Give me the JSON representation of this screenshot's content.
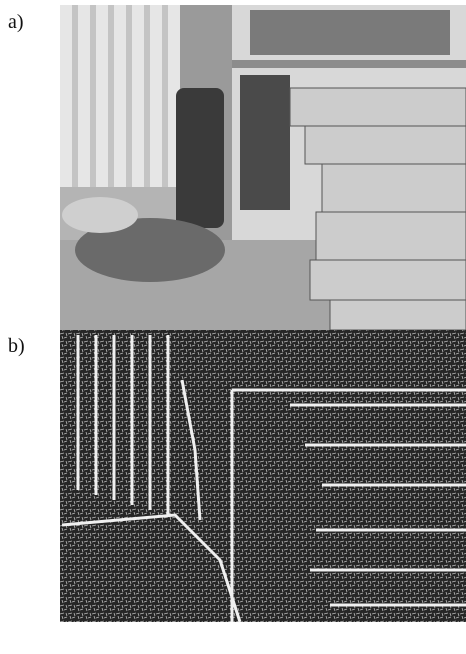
{
  "figure": {
    "panels": [
      {
        "label": "a)"
      },
      {
        "label": "b)"
      }
    ]
  }
}
